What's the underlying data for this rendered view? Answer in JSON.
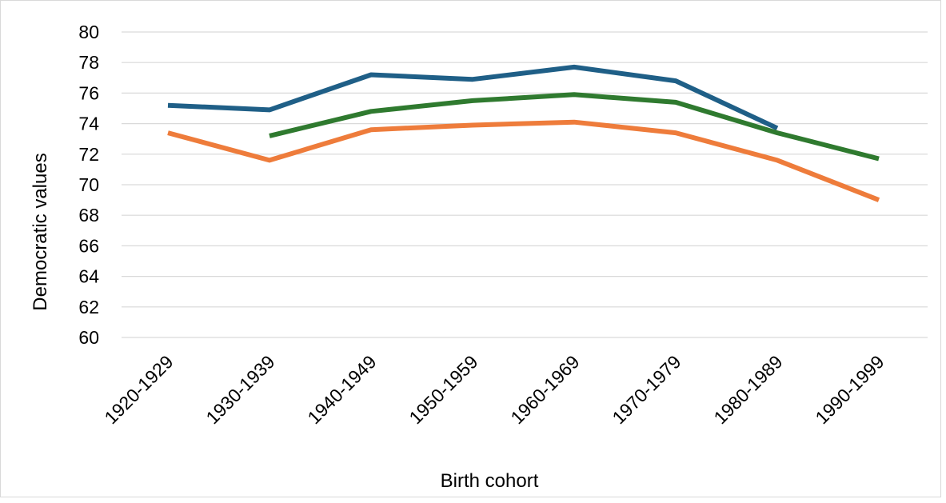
{
  "chart_data": {
    "type": "line",
    "title": "",
    "xlabel": "Birth cohort",
    "ylabel": "Democratic values",
    "categories": [
      "1920-1929",
      "1930-1939",
      "1940-1949",
      "1950-1959",
      "1960-1969",
      "1970-1979",
      "1980-1989",
      "1990-1999"
    ],
    "ylim": [
      60,
      80
    ],
    "yticks": [
      60,
      62,
      64,
      66,
      68,
      70,
      72,
      74,
      76,
      78,
      80
    ],
    "yticks_labels": [
      "60",
      "62",
      "64",
      "66",
      "68",
      "70",
      "72",
      "74",
      "76",
      "78",
      "80"
    ],
    "grid": true,
    "legend": "none",
    "series": [
      {
        "color": "#1f5f87",
        "values": [
          75.2,
          74.9,
          77.2,
          76.9,
          77.7,
          76.8,
          73.7,
          null
        ]
      },
      {
        "color": "#2f7a2f",
        "values": [
          null,
          73.2,
          74.8,
          75.5,
          75.9,
          75.4,
          73.4,
          71.7
        ]
      },
      {
        "color": "#ee7c3b",
        "values": [
          73.4,
          71.6,
          73.6,
          73.9,
          74.1,
          73.4,
          71.6,
          69.0
        ]
      }
    ]
  }
}
